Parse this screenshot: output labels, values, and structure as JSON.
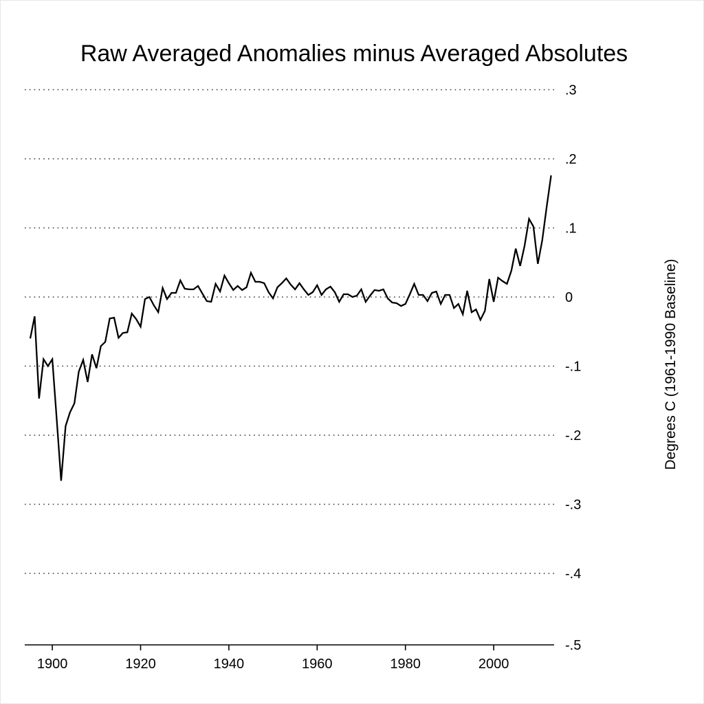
{
  "chart_data": {
    "type": "line",
    "title": "Raw Averaged Anomalies minus Averaged Absolutes",
    "xlabel": "",
    "ylabel": "Degrees C (1961-1990 Baseline)",
    "xlim": [
      1895,
      2013
    ],
    "ylim": [
      -0.5,
      0.3
    ],
    "grid": true,
    "y_axis_side": "right",
    "x_ticks": [
      1900,
      1920,
      1940,
      1960,
      1980,
      2000
    ],
    "x_tick_labels": [
      "1900",
      "1920",
      "1940",
      "1960",
      "1980",
      "2000"
    ],
    "y_ticks": [
      0.3,
      0.2,
      0.1,
      0,
      -0.1,
      -0.2,
      -0.3,
      -0.4,
      -0.5
    ],
    "y_tick_labels": [
      ".3",
      ".2",
      ".1",
      "0",
      "-.1",
      "-.2",
      "-.3",
      "-.4",
      "-.5"
    ],
    "line_color": "#000000",
    "series": [
      {
        "name": "Raw Averaged Anomalies minus Averaged Absolutes",
        "x_start": 1895,
        "values": [
          -0.06,
          -0.028,
          -0.147,
          -0.09,
          -0.1,
          -0.09,
          -0.177,
          -0.266,
          -0.187,
          -0.167,
          -0.154,
          -0.108,
          -0.091,
          -0.123,
          -0.083,
          -0.103,
          -0.071,
          -0.065,
          -0.031,
          -0.03,
          -0.059,
          -0.052,
          -0.051,
          -0.024,
          -0.032,
          -0.043,
          -0.003,
          0.0,
          -0.012,
          -0.022,
          0.013,
          -0.003,
          0.006,
          0.006,
          0.024,
          0.012,
          0.011,
          0.011,
          0.016,
          0.005,
          -0.006,
          -0.007,
          0.019,
          0.008,
          0.031,
          0.02,
          0.01,
          0.016,
          0.01,
          0.014,
          0.035,
          0.022,
          0.022,
          0.02,
          0.007,
          -0.002,
          0.014,
          0.02,
          0.027,
          0.018,
          0.011,
          0.02,
          0.011,
          0.003,
          0.007,
          0.017,
          0.003,
          0.011,
          0.015,
          0.007,
          -0.007,
          0.004,
          0.004,
          0.0,
          0.002,
          0.011,
          -0.007,
          0.002,
          0.01,
          0.009,
          0.011,
          -0.002,
          -0.008,
          -0.009,
          -0.013,
          -0.01,
          0.004,
          0.019,
          0.003,
          0.003,
          -0.006,
          0.006,
          0.008,
          -0.01,
          0.003,
          0.003,
          -0.016,
          -0.01,
          -0.025,
          0.009,
          -0.022,
          -0.018,
          -0.033,
          -0.02,
          0.026,
          -0.007,
          0.028,
          0.023,
          0.019,
          0.038,
          0.07,
          0.045,
          0.074,
          0.113,
          0.102,
          0.048,
          0.082,
          0.13,
          0.176
        ]
      }
    ]
  }
}
